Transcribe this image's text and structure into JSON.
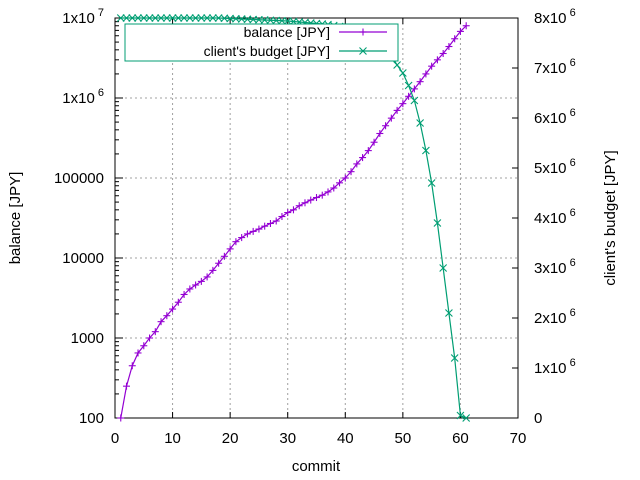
{
  "chart_data": {
    "type": "line",
    "xlabel": "commit",
    "ylabel": "balance [JPY]",
    "y2label": "client's budget [JPY]",
    "xlim": [
      0,
      70
    ],
    "xticks": [
      "0",
      "10",
      "20",
      "30",
      "40",
      "50",
      "60",
      "70"
    ],
    "ylim": [
      100,
      10000000
    ],
    "yscale": "log",
    "yticks": [
      {
        "base": "100",
        "exp": ""
      },
      {
        "base": "1000",
        "exp": ""
      },
      {
        "base": "10000",
        "exp": ""
      },
      {
        "base": "100000",
        "exp": ""
      },
      {
        "base": "1x10",
        "exp": "6"
      },
      {
        "base": "1x10",
        "exp": "7"
      }
    ],
    "y2lim": [
      0,
      8000000
    ],
    "y2ticks": [
      {
        "base": "0",
        "exp": ""
      },
      {
        "base": "1x10",
        "exp": "6"
      },
      {
        "base": "2x10",
        "exp": "6"
      },
      {
        "base": "3x10",
        "exp": "6"
      },
      {
        "base": "4x10",
        "exp": "6"
      },
      {
        "base": "5x10",
        "exp": "6"
      },
      {
        "base": "6x10",
        "exp": "6"
      },
      {
        "base": "7x10",
        "exp": "6"
      },
      {
        "base": "8x10",
        "exp": "6"
      }
    ],
    "grid": true,
    "legend_position": "top-right",
    "series": [
      {
        "name": "balance [JPY]",
        "axis": "y",
        "color": "#9400d3",
        "marker": "plus",
        "x": [
          1,
          2,
          3,
          4,
          5,
          6,
          7,
          8,
          9,
          10,
          11,
          12,
          13,
          14,
          15,
          16,
          17,
          18,
          19,
          20,
          21,
          22,
          23,
          24,
          25,
          26,
          27,
          28,
          29,
          30,
          31,
          32,
          33,
          34,
          35,
          36,
          37,
          38,
          39,
          40,
          41,
          42,
          43,
          44,
          45,
          46,
          47,
          48,
          49,
          50,
          51,
          52,
          53,
          54,
          55,
          56,
          57,
          58,
          59,
          60,
          61
        ],
        "values": [
          100,
          250,
          450,
          650,
          800,
          1000,
          1200,
          1600,
          1900,
          2300,
          2800,
          3500,
          4100,
          4600,
          5100,
          5800,
          7000,
          8600,
          10500,
          13000,
          16000,
          18000,
          20000,
          21500,
          23000,
          25000,
          27000,
          29000,
          33000,
          37000,
          40000,
          45000,
          49000,
          53000,
          57000,
          61000,
          67000,
          75000,
          87000,
          100000,
          120000,
          150000,
          180000,
          220000,
          280000,
          360000,
          450000,
          560000,
          700000,
          850000,
          1050000,
          1300000,
          1600000,
          2000000,
          2500000,
          3000000,
          3600000,
          4400000,
          5500000,
          6800000,
          8000000
        ]
      },
      {
        "name": "client's budget [JPY]",
        "axis": "y2",
        "color": "#009e73",
        "marker": "x",
        "x": [
          1,
          2,
          3,
          4,
          5,
          6,
          7,
          8,
          9,
          10,
          11,
          12,
          13,
          14,
          15,
          16,
          17,
          18,
          19,
          20,
          21,
          22,
          23,
          24,
          25,
          26,
          27,
          28,
          29,
          30,
          31,
          32,
          33,
          34,
          35,
          36,
          37,
          38,
          39,
          40,
          41,
          42,
          43,
          44,
          45,
          46,
          47,
          48,
          49,
          50,
          51,
          52,
          53,
          54,
          55,
          56,
          57,
          58,
          59,
          60,
          61
        ],
        "values": [
          8000000,
          8000000,
          8000000,
          8000000,
          8000000,
          8000000,
          8000000,
          8000000,
          8000000,
          8000000,
          8000000,
          8000000,
          8000000,
          8000000,
          8000000,
          8000000,
          8000000,
          8000000,
          7995000,
          7990000,
          7985000,
          7980000,
          7975000,
          7970000,
          7965000,
          7960000,
          7955000,
          7950000,
          7945000,
          7940000,
          7930000,
          7920000,
          7910000,
          7900000,
          7890000,
          7880000,
          7870000,
          7850000,
          7830000,
          7800000,
          7780000,
          7740000,
          7700000,
          7650000,
          7570000,
          7500000,
          7370000,
          7250000,
          7060000,
          6900000,
          6650000,
          6350000,
          5900000,
          5350000,
          4700000,
          3900000,
          3000000,
          2100000,
          1200000,
          50000,
          0
        ]
      }
    ]
  }
}
